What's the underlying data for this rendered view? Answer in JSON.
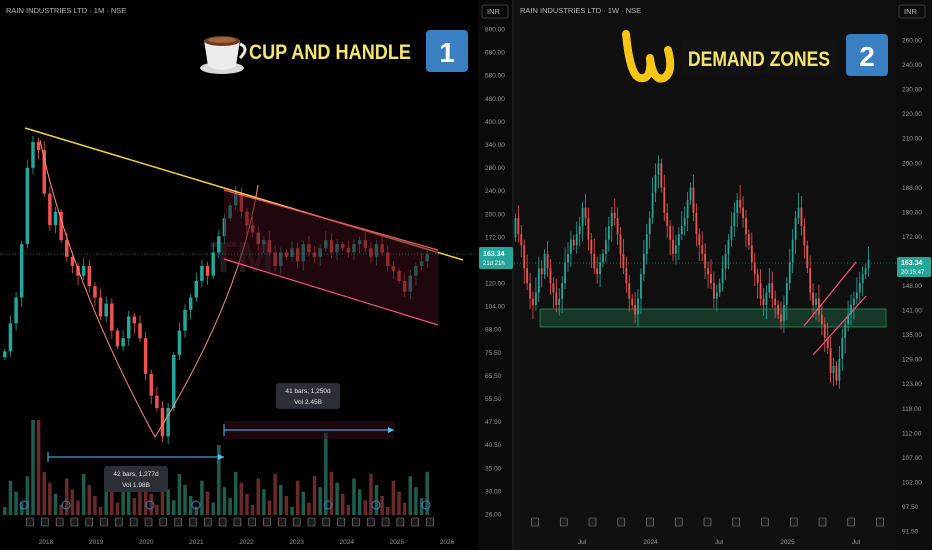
{
  "left_panel": {
    "symbol_title": "RAIN INDUSTRIES LTD · 1M · NSE",
    "currency": "INR",
    "banner_text": "CUP AND HANDLE",
    "badge_number": "1",
    "watermark": "TM",
    "y_ticks": [
      "800.00",
      "680.00",
      "580.00",
      "480.00",
      "400.00",
      "340.00",
      "280.00",
      "240.00",
      "200.00",
      "172.00",
      "140.00",
      "120.00",
      "104.00",
      "88.00",
      "75.50",
      "65.50",
      "55.50",
      "47.50",
      "40.50",
      "35.00",
      "30.00",
      "26.00"
    ],
    "x_ticks": [
      "2018",
      "2019",
      "2020",
      "2021",
      "2022",
      "2023",
      "2024",
      "2025",
      "2026"
    ],
    "last_price": "163.34",
    "countdown": "21d 21h",
    "measure_a": {
      "line1": "42 bars, 1,277d",
      "line2": "Vol 1.98B"
    },
    "measure_b": {
      "line1": "41 bars, 1,250d",
      "line2": "Vol 2.45B"
    },
    "colors": {
      "up": "#26a69a",
      "down": "#ef5350",
      "trend": "#f4d03f",
      "channel": "#ff4d7a",
      "cup": "#ff8a75",
      "measure": "#4fc3f7",
      "badge": "#3a7fc1",
      "banner_text": "#f4e66b"
    }
  },
  "right_panel": {
    "symbol_title": "RAIN INDUSTRIES LTD · 1W · NSE",
    "currency": "INR",
    "banner_text": "DEMAND ZONES",
    "badge_number": "2",
    "y_ticks": [
      "260.00",
      "240.00",
      "230.00",
      "220.00",
      "210.00",
      "200.00",
      "188.00",
      "180.00",
      "172.00",
      "156.00",
      "148.00",
      "141.00",
      "135.00",
      "129.00",
      "123.00",
      "118.00",
      "112.00",
      "107.00",
      "102.00",
      "97.50",
      "91.50"
    ],
    "x_ticks": [
      "Jul",
      "2024",
      "Jul",
      "2025",
      "Jul"
    ],
    "last_price": "163.34",
    "countdown": "20:15:47",
    "colors": {
      "zone_fill": "#1e5a3c",
      "zone_stroke": "#2e8b57",
      "channel": "#ff4d7a",
      "logo": "#f5c518"
    }
  },
  "chart_data": [
    {
      "type": "candlestick",
      "title": "RAIN INDUSTRIES LTD · 1M · NSE",
      "y_scale": "log",
      "ylim": [
        26,
        800
      ],
      "x_range": [
        "2017-05",
        "2026-01"
      ],
      "pattern": "cup and handle",
      "monthly_closes": [
        82,
        100,
        120,
        175,
        300,
        360,
        340,
        250,
        200,
        220,
        180,
        160,
        150,
        140,
        150,
        130,
        120,
        105,
        115,
        95,
        85,
        90,
        105,
        100,
        90,
        70,
        60,
        55,
        45,
        55,
        80,
        95,
        110,
        120,
        135,
        150,
        140,
        165,
        185,
        210,
        230,
        250,
        220,
        200,
        190,
        175,
        180,
        165,
        150,
        165,
        160,
        170,
        155,
        175,
        165,
        160,
        170,
        180,
        165,
        175,
        170,
        165,
        175,
        180,
        170,
        160,
        175,
        165,
        150,
        145,
        135,
        125,
        140,
        150,
        155,
        163
      ],
      "last_price": 163.34,
      "measurements": [
        {
          "label": "42 bars, 1,277d",
          "volume": "Vol 1.98B"
        },
        {
          "label": "41 bars, 1,250d",
          "volume": "Vol 2.45B"
        }
      ]
    },
    {
      "type": "candlestick",
      "title": "RAIN INDUSTRIES LTD · 1W · NSE",
      "y_scale": "log",
      "ylim": [
        91.5,
        260
      ],
      "x_range": [
        "2023-04",
        "2025-08"
      ],
      "demand_zone": [
        143,
        149
      ],
      "weekly_closes": [
        178,
        172,
        168,
        160,
        155,
        150,
        148,
        152,
        160,
        158,
        165,
        160,
        155,
        152,
        148,
        150,
        155,
        162,
        165,
        170,
        168,
        172,
        175,
        182,
        178,
        170,
        165,
        160,
        158,
        162,
        165,
        170,
        175,
        180,
        178,
        172,
        165,
        160,
        155,
        150,
        148,
        145,
        150,
        158,
        165,
        172,
        178,
        188,
        195,
        200,
        190,
        180,
        175,
        170,
        165,
        168,
        172,
        175,
        178,
        185,
        190,
        180,
        172,
        168,
        165,
        160,
        158,
        155,
        150,
        152,
        155,
        160,
        165,
        170,
        175,
        180,
        185,
        182,
        178,
        172,
        168,
        162,
        158,
        155,
        150,
        148,
        152,
        155,
        150,
        148,
        145,
        143,
        148,
        155,
        162,
        170,
        178,
        182,
        175,
        168,
        160,
        152,
        148,
        150,
        145,
        142,
        138,
        135,
        128,
        130,
        126,
        132,
        138,
        142,
        145,
        148,
        150,
        152,
        155,
        158,
        160,
        163
      ]
    }
  ]
}
